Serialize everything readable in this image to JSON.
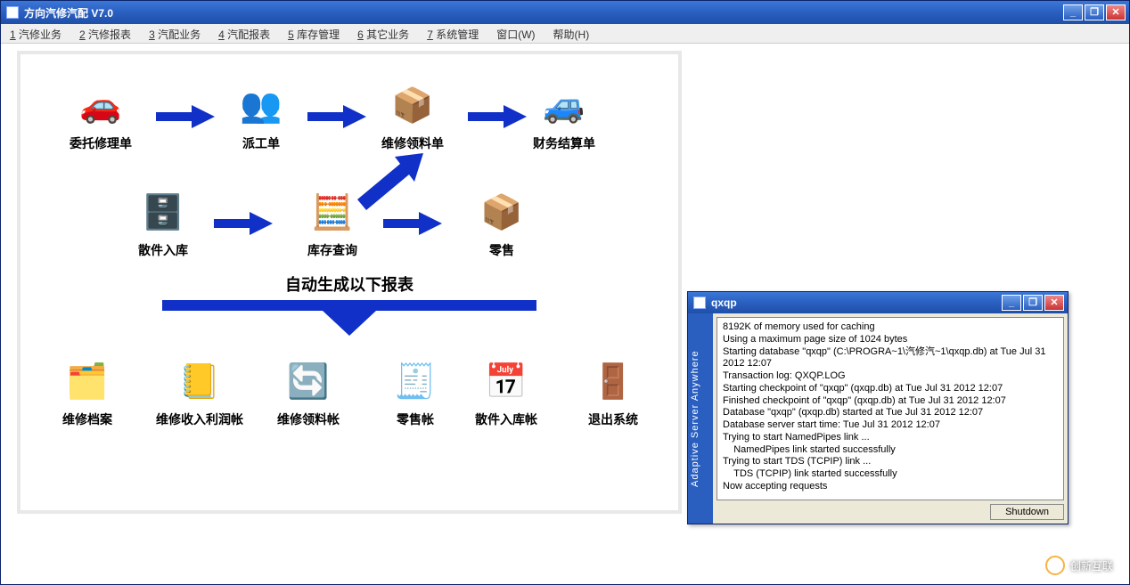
{
  "window": {
    "title": "方向汽修汽配 V7.0",
    "min": "_",
    "restore": "❐",
    "close": "✕"
  },
  "menu": [
    {
      "u": "1",
      "label": " 汽修业务"
    },
    {
      "u": "2",
      "label": " 汽修报表"
    },
    {
      "u": "3",
      "label": " 汽配业务"
    },
    {
      "u": "4",
      "label": " 汽配报表"
    },
    {
      "u": "5",
      "label": " 库存管理"
    },
    {
      "u": "6",
      "label": " 其它业务"
    },
    {
      "u": "7",
      "label": " 系统管理"
    },
    {
      "u": "",
      "label": "窗口(W)"
    },
    {
      "u": "",
      "label": "帮助(H)"
    }
  ],
  "flow": {
    "row1": [
      {
        "label": "委托修理单",
        "emoji": "🚗",
        "color": "#f5c518"
      },
      {
        "label": "派工单",
        "emoji": "👥",
        "color": "#cc3333"
      },
      {
        "label": "维修领料单",
        "emoji": "📦",
        "color": "#b97a3c"
      },
      {
        "label": "财务结算单",
        "emoji": "🚙",
        "color": "#888"
      }
    ],
    "row2": [
      {
        "label": "散件入库",
        "emoji": "🗄️",
        "color": "#b97a3c"
      },
      {
        "label": "库存查询",
        "emoji": "🧮",
        "color": "#7aa"
      },
      {
        "label": "零售",
        "emoji": "📦",
        "color": "#b97a3c"
      }
    ],
    "banner": "自动生成以下报表",
    "row3": [
      {
        "label": "维修档案",
        "emoji": "🗂️"
      },
      {
        "label": "维修收入利润帐",
        "emoji": "📒"
      },
      {
        "label": "维修领料帐",
        "emoji": "🔄"
      },
      {
        "label": "零售帐",
        "emoji": "🧾"
      },
      {
        "label": "散件入库帐",
        "emoji": "📅"
      },
      {
        "label": "退出系统",
        "emoji": "🚪"
      }
    ],
    "arrow_color": "#1030c8"
  },
  "server": {
    "title": "qxqp",
    "side": "Adaptive Server Anywhere",
    "log": "8192K of memory used for caching\nUsing a maximum page size of 1024 bytes\nStarting database \"qxqp\" (C:\\PROGRA~1\\汽修汽~1\\qxqp.db) at Tue Jul 31 2012 12:07\nTransaction log: QXQP.LOG\nStarting checkpoint of \"qxqp\" (qxqp.db) at Tue Jul 31 2012 12:07\nFinished checkpoint of \"qxqp\" (qxqp.db) at Tue Jul 31 2012 12:07\nDatabase \"qxqp\" (qxqp.db) started at Tue Jul 31 2012 12:07\nDatabase server start time: Tue Jul 31 2012 12:07\nTrying to start NamedPipes link ...\n    NamedPipes link started successfully\nTrying to start TDS (TCPIP) link ...\n    TDS (TCPIP) link started successfully\nNow accepting requests",
    "shutdown": "Shutdown"
  },
  "watermark": "创新互联"
}
